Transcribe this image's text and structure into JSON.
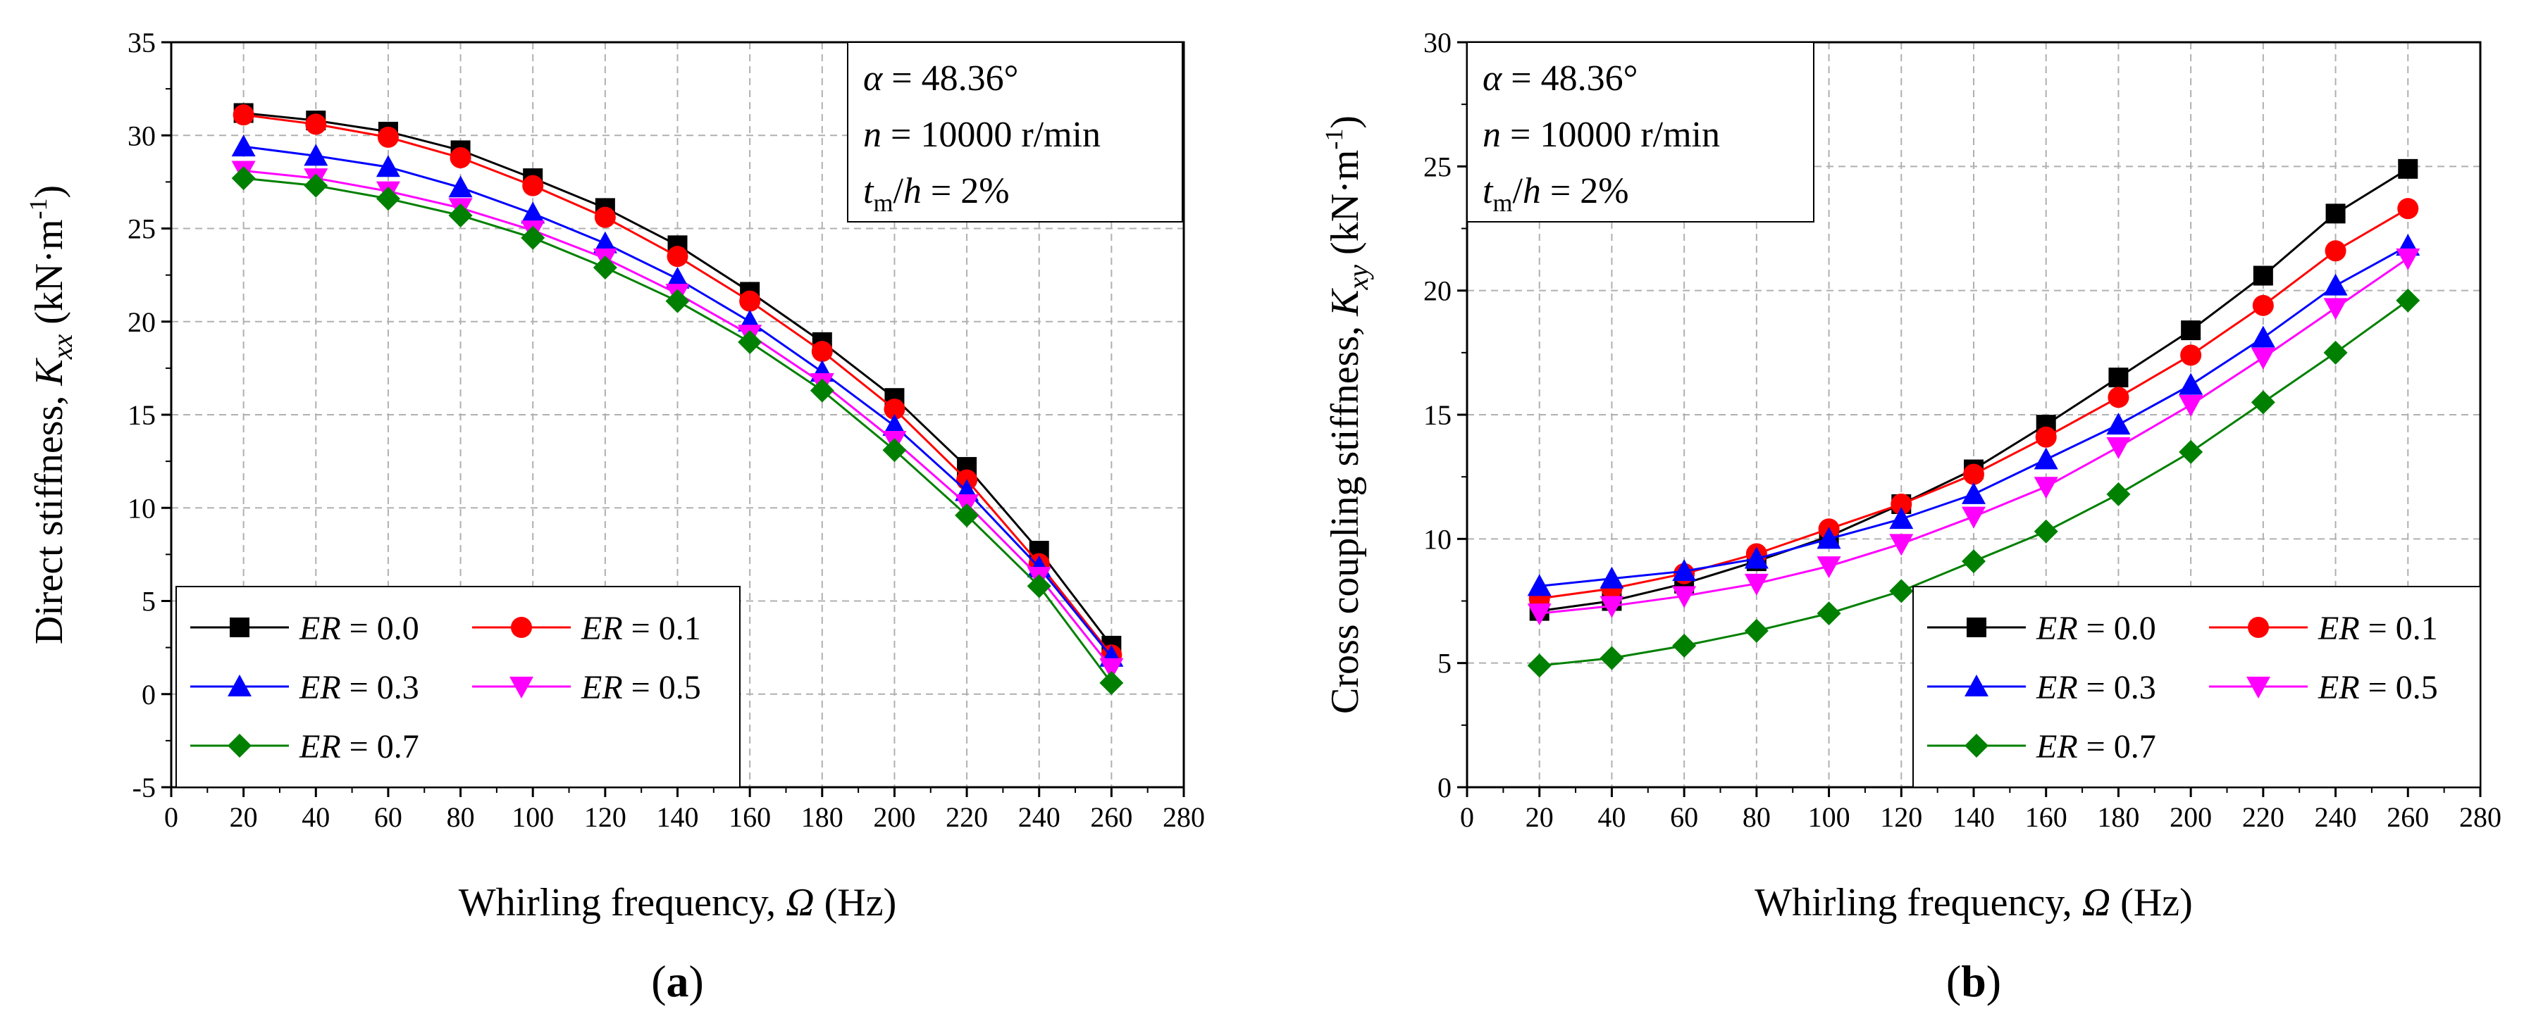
{
  "figure": {
    "panel_labels": {
      "a": {
        "open": "(",
        "letter": "a",
        "close": ")"
      },
      "b": {
        "open": "(",
        "letter": "b",
        "close": ")"
      }
    },
    "annotation": {
      "alpha_symbol": "α",
      "alpha_text": " = 48.36°",
      "n_symbol": "n",
      "n_text": " = 10000 r/min",
      "t_symbol": "t",
      "t_sub": "m",
      "t_text": "/h = 2%"
    },
    "x_axis_title": {
      "prefix": "Whirling frequency, ",
      "symbol": "Ω",
      "suffix": " (Hz)"
    },
    "colors": {
      "ER=0.0": "#000000",
      "ER=0.1": "#ff0000",
      "ER=0.3": "#0000ff",
      "ER=0.5": "#ff00ff",
      "ER=0.7": "#008000"
    }
  },
  "chart_data": [
    {
      "id": "a",
      "type": "line",
      "ylabel_prefix": "Direct stiffness, ",
      "ylabel_symbol": "K",
      "ylabel_sub": "xx",
      "ylabel_unit": " (kN·m",
      "ylabel_sup": "-1",
      "ylabel_close": ")",
      "xlabel": "Whirling frequency, Ω (Hz)",
      "xlim": [
        0,
        280
      ],
      "ylim": [
        -5,
        35
      ],
      "xticks": [
        "0",
        "20",
        "40",
        "60",
        "80",
        "100",
        "120",
        "140",
        "160",
        "180",
        "200",
        "220",
        "240",
        "260",
        "280"
      ],
      "yticks": [
        "-5",
        "0",
        "5",
        "10",
        "15",
        "20",
        "25",
        "30",
        "35"
      ],
      "grid": true,
      "legend_position": "bottom-left",
      "x": [
        20,
        40,
        60,
        80,
        100,
        120,
        140,
        160,
        180,
        200,
        220,
        240,
        260
      ],
      "series": [
        {
          "name": "ER = 0.0",
          "var": "ER",
          "label": " = 0.0",
          "marker": "square",
          "color": "#000000",
          "values": [
            31.2,
            30.8,
            30.2,
            29.2,
            27.7,
            26.1,
            24.1,
            21.6,
            18.9,
            15.9,
            12.2,
            7.7,
            2.6
          ]
        },
        {
          "name": "ER = 0.1",
          "var": "ER",
          "label": " = 0.1",
          "marker": "circle",
          "color": "#ff0000",
          "values": [
            31.1,
            30.6,
            29.9,
            28.8,
            27.3,
            25.6,
            23.5,
            21.1,
            18.4,
            15.3,
            11.5,
            7.0,
            2.1
          ]
        },
        {
          "name": "ER = 0.3",
          "var": "ER",
          "label": " = 0.3",
          "marker": "triangle-up",
          "color": "#0000ff",
          "values": [
            29.4,
            28.9,
            28.3,
            27.2,
            25.8,
            24.2,
            22.3,
            20.0,
            17.3,
            14.4,
            10.9,
            6.8,
            2.0
          ]
        },
        {
          "name": "ER = 0.5",
          "var": "ER",
          "label": " = 0.5",
          "marker": "triangle-down",
          "color": "#ff00ff",
          "values": [
            28.1,
            27.7,
            27.0,
            26.1,
            24.9,
            23.4,
            21.5,
            19.3,
            16.7,
            13.6,
            10.2,
            6.3,
            1.4
          ]
        },
        {
          "name": "ER = 0.7",
          "var": "ER",
          "label": " = 0.7",
          "marker": "diamond",
          "color": "#008000",
          "values": [
            27.7,
            27.3,
            26.6,
            25.7,
            24.5,
            22.9,
            21.1,
            18.9,
            16.3,
            13.1,
            9.6,
            5.8,
            0.6
          ]
        }
      ]
    },
    {
      "id": "b",
      "type": "line",
      "ylabel_prefix": "Cross coupling stiffness, ",
      "ylabel_symbol": "K",
      "ylabel_sub": "xy",
      "ylabel_unit": " (kN·m",
      "ylabel_sup": "-1",
      "ylabel_close": ")",
      "xlabel": "Whirling frequency, Ω (Hz)",
      "xlim": [
        0,
        280
      ],
      "ylim": [
        0,
        30
      ],
      "xticks": [
        "0",
        "20",
        "40",
        "60",
        "80",
        "100",
        "120",
        "140",
        "160",
        "180",
        "200",
        "220",
        "240",
        "260",
        "280"
      ],
      "yticks": [
        "0",
        "5",
        "10",
        "15",
        "20",
        "25",
        "30"
      ],
      "grid": true,
      "legend_position": "bottom-right",
      "x": [
        20,
        40,
        60,
        80,
        100,
        120,
        140,
        160,
        180,
        200,
        220,
        240,
        260
      ],
      "series": [
        {
          "name": "ER = 0.0",
          "var": "ER",
          "label": " = 0.0",
          "marker": "square",
          "color": "#000000",
          "values": [
            7.1,
            7.5,
            8.2,
            9.1,
            10.1,
            11.4,
            12.8,
            14.6,
            16.5,
            18.4,
            20.6,
            23.1,
            24.9
          ]
        },
        {
          "name": "ER = 0.1",
          "var": "ER",
          "label": " = 0.1",
          "marker": "circle",
          "color": "#ff0000",
          "values": [
            7.6,
            8.0,
            8.6,
            9.4,
            10.4,
            11.4,
            12.6,
            14.1,
            15.7,
            17.4,
            19.4,
            21.6,
            23.3
          ]
        },
        {
          "name": "ER = 0.3",
          "var": "ER",
          "label": " = 0.3",
          "marker": "triangle-up",
          "color": "#0000ff",
          "values": [
            8.1,
            8.4,
            8.7,
            9.2,
            10.0,
            10.8,
            11.8,
            13.2,
            14.6,
            16.2,
            18.1,
            20.2,
            21.8
          ]
        },
        {
          "name": "ER = 0.5",
          "var": "ER",
          "label": " = 0.5",
          "marker": "triangle-down",
          "color": "#ff00ff",
          "values": [
            7.0,
            7.3,
            7.7,
            8.2,
            8.9,
            9.8,
            10.9,
            12.1,
            13.7,
            15.4,
            17.3,
            19.3,
            21.3
          ]
        },
        {
          "name": "ER = 0.7",
          "var": "ER",
          "label": " = 0.7",
          "marker": "diamond",
          "color": "#008000",
          "values": [
            4.9,
            5.2,
            5.7,
            6.3,
            7.0,
            7.9,
            9.1,
            10.3,
            11.8,
            13.5,
            15.5,
            17.5,
            19.6
          ]
        }
      ]
    }
  ]
}
